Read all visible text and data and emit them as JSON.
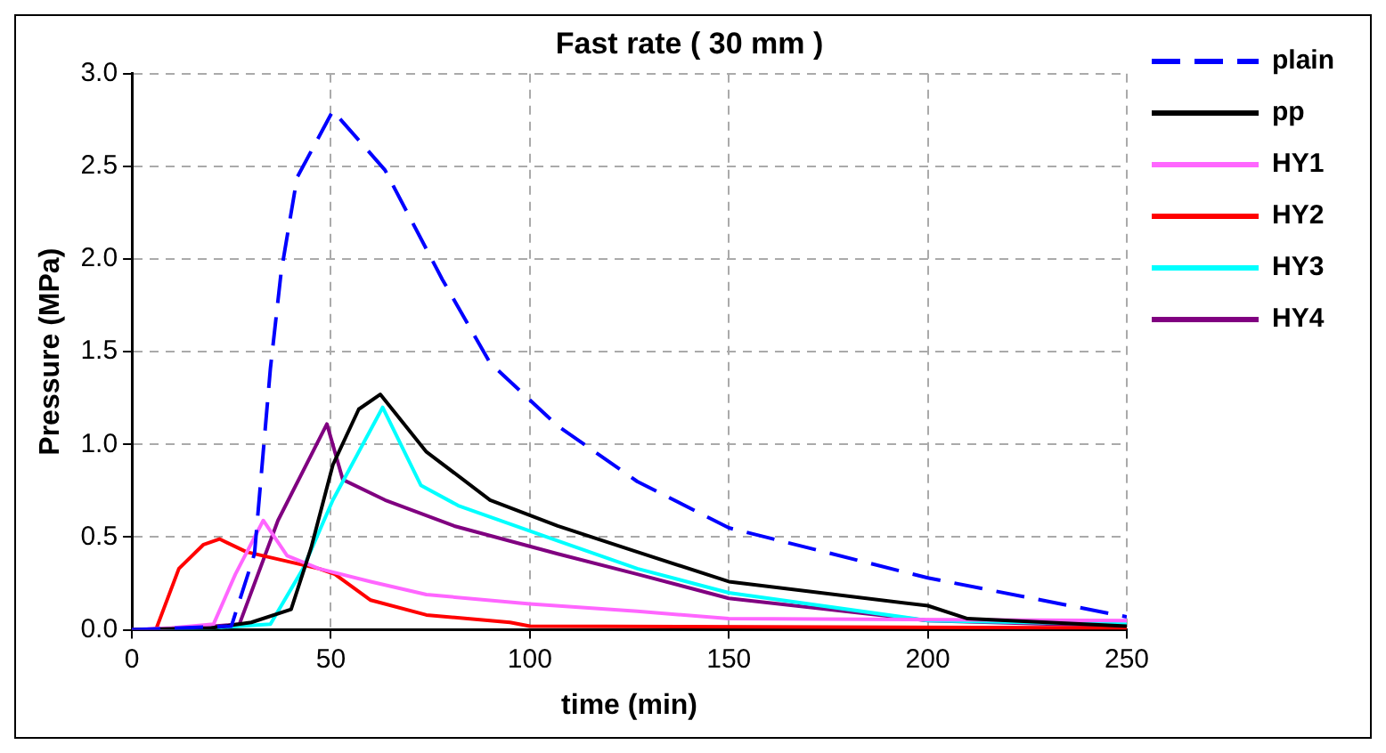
{
  "chart_data": {
    "type": "line",
    "title": "Fast rate ( 30 mm )",
    "xlabel": "time (min)",
    "ylabel": "Pressure (MPa)",
    "xlim": [
      0,
      250
    ],
    "xticks": [
      0,
      50,
      100,
      150,
      200,
      250
    ],
    "ylim": [
      0,
      3
    ],
    "yticks": [
      {
        "value": 0,
        "label": "0.0"
      },
      {
        "value": 0.5,
        "label": "0.5"
      },
      {
        "value": 1,
        "label": "1.0"
      },
      {
        "value": 1.5,
        "label": "1.5"
      },
      {
        "value": 2,
        "label": "2.0"
      },
      {
        "value": 2.5,
        "label": "2.5"
      },
      {
        "value": 3,
        "label": "3.0"
      }
    ],
    "grid": true,
    "legend": "right",
    "marker": "none",
    "series": [
      {
        "name": "plain",
        "color": "#0000ff",
        "line_style": "dashed",
        "x": [
          0,
          25,
          30.8,
          34.8,
          37.5,
          41.5,
          50.5,
          63.6,
          78,
          90,
          107,
          127,
          150,
          200,
          250
        ],
        "values": [
          0,
          0.02,
          0.41,
          1.41,
          1.93,
          2.44,
          2.8,
          2.48,
          1.89,
          1.44,
          1.1,
          0.8,
          0.55,
          0.28,
          0.07
        ]
      },
      {
        "name": "pp",
        "color": "#000000",
        "line_style": "solid",
        "x": [
          0,
          20,
          30,
          40,
          45,
          50.5,
          57,
          62.4,
          74,
          90,
          107,
          127,
          150,
          200,
          210,
          250
        ],
        "values": [
          0,
          0.01,
          0.04,
          0.11,
          0.44,
          0.89,
          1.19,
          1.27,
          0.96,
          0.7,
          0.56,
          0.42,
          0.26,
          0.13,
          0.06,
          0.02
        ]
      },
      {
        "name": "HY1",
        "color": "#ff66ff",
        "line_style": "solid",
        "x": [
          0,
          10,
          20.5,
          26,
          33,
          39,
          47,
          60,
          74,
          100,
          127,
          150,
          250
        ],
        "values": [
          0,
          0.01,
          0.03,
          0.3,
          0.59,
          0.4,
          0.33,
          0.26,
          0.19,
          0.14,
          0.1,
          0.06,
          0.05
        ]
      },
      {
        "name": "HY2",
        "color": "#ff0000",
        "line_style": "solid",
        "x": [
          0,
          6,
          11.8,
          18,
          22,
          28.8,
          47,
          51,
          60,
          74,
          95,
          100,
          250
        ],
        "values": [
          0,
          0,
          0.33,
          0.46,
          0.49,
          0.42,
          0.33,
          0.3,
          0.16,
          0.08,
          0.04,
          0.02,
          0.01
        ]
      },
      {
        "name": "HY3",
        "color": "#00ffff",
        "line_style": "solid",
        "x": [
          0,
          20,
          34.8,
          43,
          50.5,
          63,
          72.6,
          82,
          107,
          127,
          150,
          200,
          250
        ],
        "values": [
          0,
          0.01,
          0.03,
          0.33,
          0.7,
          1.2,
          0.78,
          0.67,
          0.48,
          0.33,
          0.2,
          0.05,
          0.03
        ]
      },
      {
        "name": "HY4",
        "color": "#800080",
        "line_style": "solid",
        "x": [
          0,
          15,
          27,
          36.7,
          49,
          53,
          63.6,
          81,
          107,
          127,
          150,
          200,
          250
        ],
        "values": [
          0,
          0.01,
          0.03,
          0.59,
          1.11,
          0.81,
          0.7,
          0.56,
          0.41,
          0.3,
          0.17,
          0.05,
          0.02
        ]
      }
    ]
  }
}
